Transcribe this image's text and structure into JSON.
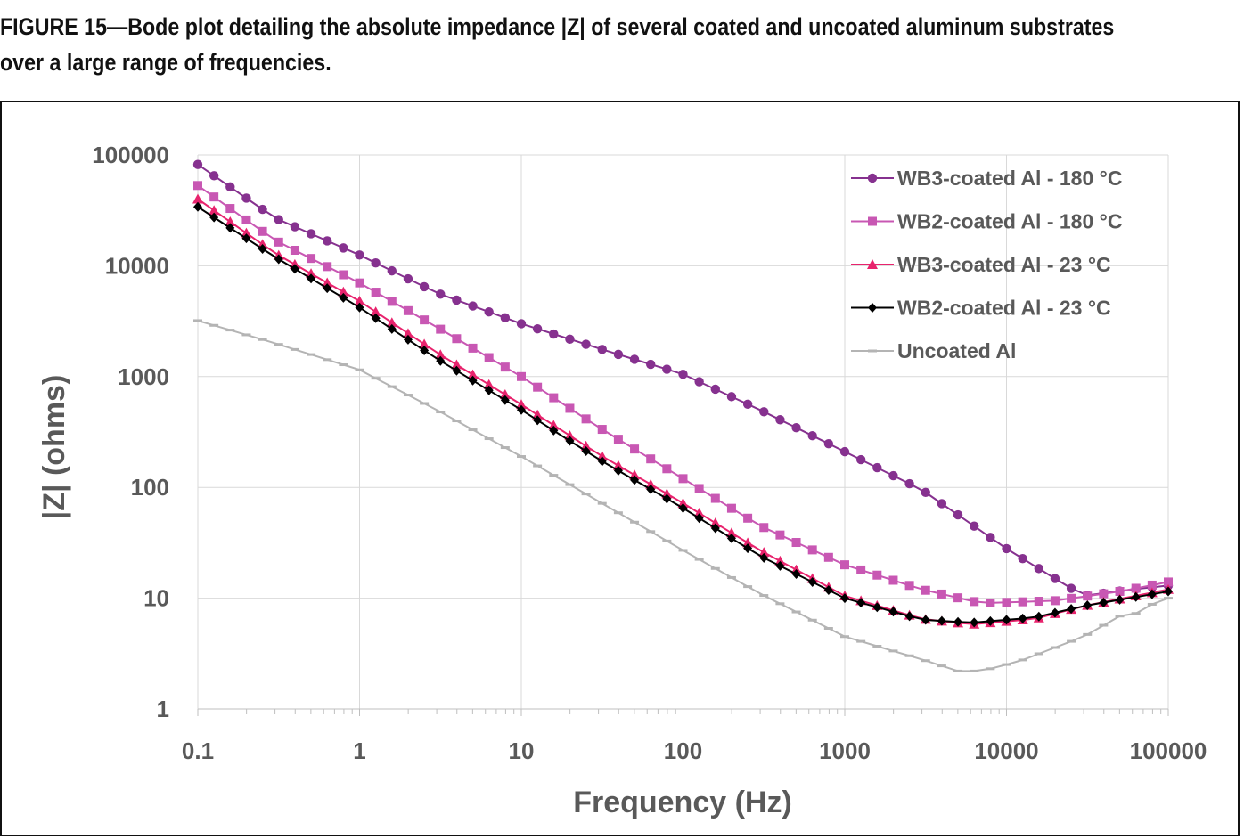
{
  "figure": {
    "caption_line1": "FIGURE 15—Bode plot detailing the absolute impedance |Z| of several coated and uncoated aluminum substrates",
    "caption_line2": "over a large range of frequencies."
  },
  "chart_data": {
    "type": "line",
    "title": "",
    "xlabel": "Frequency (Hz)",
    "ylabel": "|Z| (ohms)",
    "xscale": "log",
    "yscale": "log",
    "xlim": [
      0.1,
      100000
    ],
    "ylim": [
      1,
      100000
    ],
    "xticks": [
      "0.1",
      "1",
      "10",
      "100",
      "1000",
      "10000",
      "100000"
    ],
    "yticks": [
      "1",
      "10",
      "100",
      "1000",
      "10000",
      "100000"
    ],
    "grid": true,
    "legend_position": "top-right",
    "series": [
      {
        "name": "WB3-coated Al - 180 °C",
        "color": "#86318f",
        "marker": "circle",
        "points": [
          [
            0.1,
            82000
          ],
          [
            0.3,
            27000
          ],
          [
            1,
            12500
          ],
          [
            3,
            5700
          ],
          [
            10,
            3000
          ],
          [
            30,
            1800
          ],
          [
            100,
            1050
          ],
          [
            300,
            500
          ],
          [
            1000,
            210
          ],
          [
            3000,
            95
          ],
          [
            10000,
            28
          ],
          [
            20000,
            15
          ],
          [
            30000,
            10.5
          ],
          [
            60000,
            12
          ],
          [
            100000,
            13
          ]
        ]
      },
      {
        "name": "WB2-coated Al - 180 °C",
        "color": "#c857b3",
        "marker": "square",
        "points": [
          [
            0.1,
            53000
          ],
          [
            0.3,
            17000
          ],
          [
            1,
            7000
          ],
          [
            3,
            2800
          ],
          [
            10,
            1000
          ],
          [
            30,
            350
          ],
          [
            100,
            120
          ],
          [
            300,
            45
          ],
          [
            1000,
            20
          ],
          [
            3000,
            12
          ],
          [
            7000,
            9
          ],
          [
            20000,
            9.5
          ],
          [
            50000,
            11.5
          ],
          [
            100000,
            14
          ]
        ]
      },
      {
        "name": "WB3-coated Al - 23 °C",
        "color": "#e8236d",
        "marker": "triangle",
        "points": [
          [
            0.1,
            40000
          ],
          [
            0.3,
            13000
          ],
          [
            1,
            4800
          ],
          [
            3,
            1650
          ],
          [
            10,
            560
          ],
          [
            30,
            200
          ],
          [
            100,
            72
          ],
          [
            300,
            27
          ],
          [
            1000,
            10.5
          ],
          [
            3000,
            6.5
          ],
          [
            6000,
            5.8
          ],
          [
            15000,
            6.5
          ],
          [
            30000,
            8.5
          ],
          [
            100000,
            12
          ]
        ]
      },
      {
        "name": "WB2-coated Al - 23 °C",
        "color": "#000000",
        "marker": "diamond",
        "points": [
          [
            0.1,
            34000
          ],
          [
            0.3,
            12000
          ],
          [
            1,
            4200
          ],
          [
            3,
            1450
          ],
          [
            10,
            500
          ],
          [
            30,
            180
          ],
          [
            100,
            65
          ],
          [
            300,
            24
          ],
          [
            1000,
            10
          ],
          [
            3000,
            6.4
          ],
          [
            6000,
            6
          ],
          [
            15000,
            6.7
          ],
          [
            30000,
            8.5
          ],
          [
            100000,
            11.5
          ]
        ]
      },
      {
        "name": "Uncoated Al",
        "color": "#b4b4b4",
        "marker": "dash",
        "points": [
          [
            0.1,
            3200
          ],
          [
            0.3,
            2000
          ],
          [
            1,
            1150
          ],
          [
            3,
            500
          ],
          [
            10,
            190
          ],
          [
            30,
            75
          ],
          [
            100,
            27
          ],
          [
            300,
            11
          ],
          [
            1000,
            4.5
          ],
          [
            3000,
            2.8
          ],
          [
            5000,
            2.2
          ],
          [
            7000,
            2.2
          ],
          [
            12000,
            2.7
          ],
          [
            30000,
            4.5
          ],
          [
            60000,
            8
          ],
          [
            70000,
            6
          ],
          [
            80000,
            9
          ],
          [
            90000,
            6.5
          ],
          [
            100000,
            10
          ]
        ]
      }
    ]
  }
}
